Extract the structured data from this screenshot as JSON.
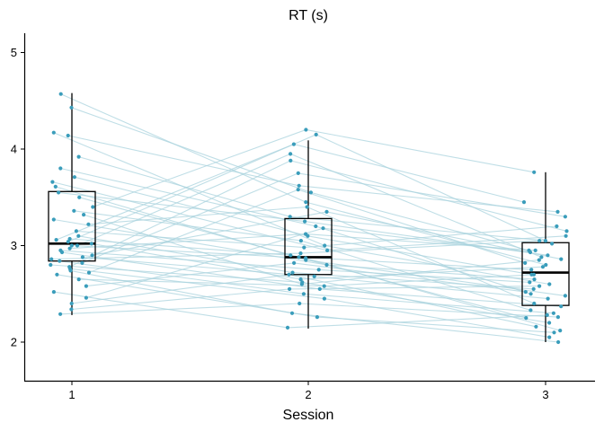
{
  "chart_data": {
    "type": "boxplot",
    "title": "RT (s)",
    "xlabel": "Session",
    "ylabel": "",
    "categories": [
      "1",
      "2",
      "3"
    ],
    "ylim": [
      1.6,
      5.2
    ],
    "yticks": [
      2,
      3,
      4,
      5
    ],
    "grid": false,
    "legend": "none",
    "colors": {
      "point": "#3a9dbb",
      "line": "#a9d3dd",
      "box": "#000000"
    },
    "boxes": [
      {
        "category": "1",
        "whisker_low": 2.28,
        "q1": 2.84,
        "median": 3.02,
        "q3": 3.56,
        "whisker_high": 4.58
      },
      {
        "category": "2",
        "whisker_low": 2.14,
        "q1": 2.7,
        "median": 2.88,
        "q3": 3.28,
        "whisker_high": 4.09
      },
      {
        "category": "3",
        "whisker_low": 2.0,
        "q1": 2.38,
        "median": 2.72,
        "q3": 3.03,
        "whisker_high": 3.76
      }
    ],
    "subjects": [
      [
        4.43,
        3.55,
        2.95
      ],
      [
        4.57,
        3.45,
        2.8
      ],
      [
        4.17,
        3.0,
        2.6
      ],
      [
        4.14,
        3.62,
        3.35
      ],
      [
        3.92,
        3.3,
        3.05
      ],
      [
        3.8,
        3.2,
        2.5
      ],
      [
        3.71,
        3.1,
        2.7
      ],
      [
        3.66,
        2.95,
        3.1
      ],
      [
        3.61,
        2.85,
        2.48
      ],
      [
        3.55,
        3.25,
        2.9
      ],
      [
        3.5,
        2.88,
        2.75
      ],
      [
        3.4,
        4.2,
        3.76
      ],
      [
        3.36,
        3.05,
        2.33
      ],
      [
        3.32,
        2.6,
        2.85
      ],
      [
        3.27,
        2.8,
        2.65
      ],
      [
        3.22,
        3.4,
        2.4
      ],
      [
        3.15,
        2.98,
        3.2
      ],
      [
        3.1,
        2.72,
        2.55
      ],
      [
        3.07,
        2.9,
        2.25
      ],
      [
        3.04,
        4.15,
        3.02
      ],
      [
        3.02,
        2.65,
        2.78
      ],
      [
        3.0,
        2.87,
        2.12
      ],
      [
        2.97,
        3.12,
        2.95
      ],
      [
        2.95,
        2.75,
        2.62
      ],
      [
        2.93,
        2.55,
        2.37
      ],
      [
        2.9,
        3.35,
        2.86
      ],
      [
        2.88,
        2.68,
        2.45
      ],
      [
        2.86,
        2.92,
        3.05
      ],
      [
        2.84,
        2.5,
        2.3
      ],
      [
        2.82,
        3.75,
        3.3
      ],
      [
        2.8,
        2.62,
        2.2
      ],
      [
        2.78,
        3.88,
        3.15
      ],
      [
        2.76,
        2.45,
        2.05
      ],
      [
        2.74,
        2.3,
        2.0
      ],
      [
        2.72,
        3.58,
        2.82
      ],
      [
        2.7,
        2.26,
        2.1
      ],
      [
        2.65,
        2.58,
        2.7
      ],
      [
        2.58,
        2.82,
        2.52
      ],
      [
        2.52,
        2.15,
        2.28
      ],
      [
        2.46,
        3.18,
        2.93
      ],
      [
        2.4,
        2.7,
        2.16
      ],
      [
        2.34,
        2.55,
        2.58
      ],
      [
        2.29,
        2.4,
        2.26
      ],
      [
        3.06,
        4.05,
        3.45
      ],
      [
        3.0,
        3.95,
        2.88
      ]
    ]
  }
}
